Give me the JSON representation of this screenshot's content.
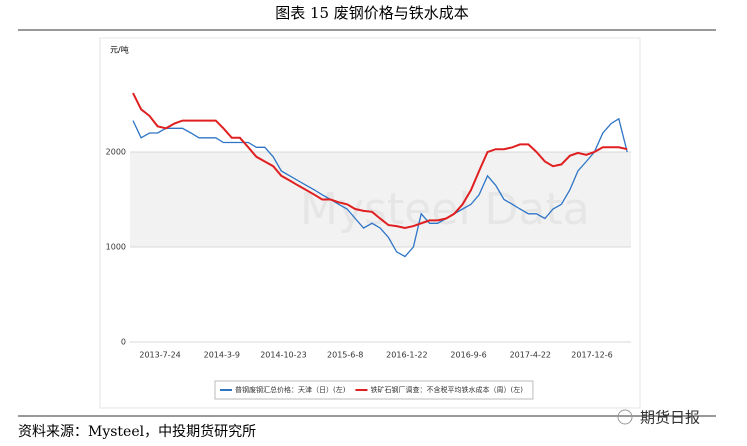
{
  "chart_data": {
    "type": "line",
    "title": "图表 15 废钢价格与铁水成本",
    "y_label": "元/吨",
    "source": "资料来源：Mysteel，中投期货研究所",
    "watermark": "Mysteel Data",
    "logo": "期货日报",
    "x": [
      "2013-4-15",
      "2013-5-15",
      "2013-6-15",
      "2013-7-15",
      "2013-8-15",
      "2013-9-15",
      "2013-10-15",
      "2013-11-15",
      "2013-12-15",
      "2014-1-15",
      "2014-2-15",
      "2014-3-15",
      "2014-4-15",
      "2014-5-15",
      "2014-6-15",
      "2014-7-15",
      "2014-8-15",
      "2014-9-15",
      "2014-10-15",
      "2014-11-15",
      "2014-12-15",
      "2015-1-15",
      "2015-2-15",
      "2015-3-15",
      "2015-4-15",
      "2015-5-15",
      "2015-6-15",
      "2015-7-15",
      "2015-8-15",
      "2015-9-15",
      "2015-10-15",
      "2015-11-15",
      "2015-12-15",
      "2016-1-15",
      "2016-2-15",
      "2016-3-15",
      "2016-4-15",
      "2016-5-15",
      "2016-6-15",
      "2016-7-15",
      "2016-8-15",
      "2016-9-15",
      "2016-10-15",
      "2016-11-15",
      "2016-12-15",
      "2017-1-15",
      "2017-2-15",
      "2017-3-15",
      "2017-4-15",
      "2017-5-15",
      "2017-6-15",
      "2017-7-15",
      "2017-8-15",
      "2017-9-15",
      "2017-10-15",
      "2017-11-15",
      "2017-12-15",
      "2018-1-15",
      "2018-2-15",
      "2018-3-15",
      "2018-4-15"
    ],
    "xlim": [
      "2013-4-15",
      "2018-4-18"
    ],
    "xticks": [
      "2013-7-24",
      "2014-3-9",
      "2014-10-23",
      "2015-6-8",
      "2016-1-22",
      "2016-9-6",
      "2017-4-22",
      "2017-12-6"
    ],
    "ylim": [
      0,
      2900
    ],
    "yticks": [
      0,
      1000,
      2000
    ],
    "series": [
      {
        "name": "普钢废钢汇总价格：天津（日）(左)",
        "color": "#2e75c6",
        "values": [
          2330,
          2150,
          2200,
          2200,
          2250,
          2250,
          2250,
          2200,
          2150,
          2150,
          2150,
          2100,
          2100,
          2100,
          2100,
          2050,
          2050,
          1950,
          1800,
          1750,
          1700,
          1650,
          1600,
          1550,
          1500,
          1450,
          1400,
          1300,
          1200,
          1250,
          1200,
          1100,
          950,
          900,
          1000,
          1350,
          1250,
          1250,
          1300,
          1350,
          1400,
          1450,
          1550,
          1750,
          1650,
          1500,
          1450,
          1400,
          1350,
          1350,
          1300,
          1400,
          1450,
          1600,
          1800,
          1900,
          2000,
          2200,
          2300,
          2350,
          2000
        ]
      },
      {
        "name": "铁矿石钢厂调查：不含税平均铁水成本（周）(左)",
        "color": "#e02020",
        "values": [
          2620,
          2450,
          2380,
          2270,
          2250,
          2300,
          2330,
          2330,
          2330,
          2330,
          2330,
          2250,
          2150,
          2150,
          2050,
          1950,
          1900,
          1850,
          1750,
          1700,
          1650,
          1600,
          1550,
          1500,
          1500,
          1470,
          1450,
          1400,
          1380,
          1370,
          1300,
          1230,
          1220,
          1200,
          1220,
          1250,
          1280,
          1280,
          1300,
          1350,
          1450,
          1600,
          1800,
          2000,
          2030,
          2030,
          2050,
          2080,
          2080,
          2000,
          1900,
          1850,
          1870,
          1960,
          1990,
          1970,
          2000,
          2050,
          2050,
          2050,
          2030
        ]
      }
    ]
  }
}
